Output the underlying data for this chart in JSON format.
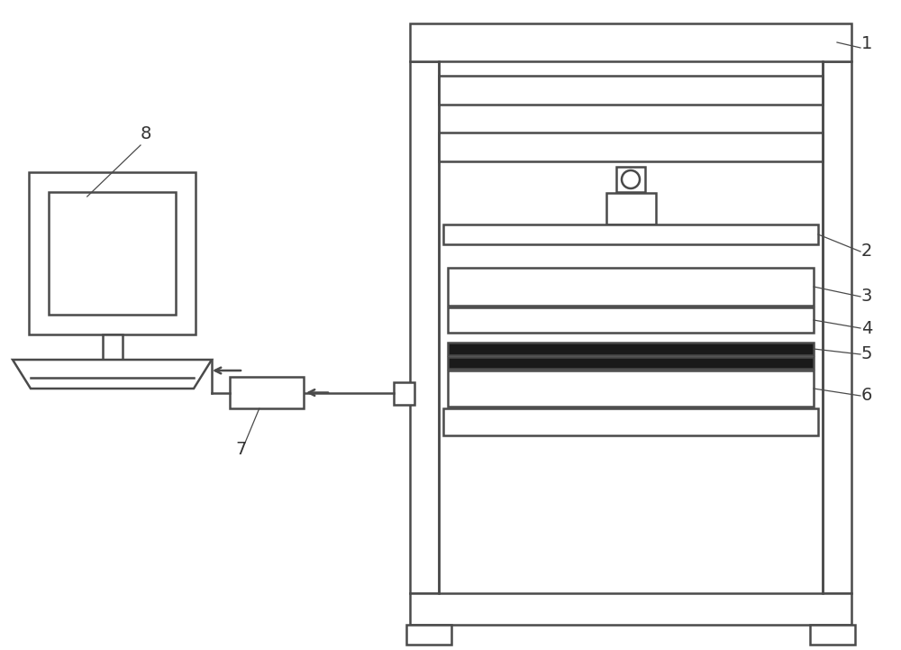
{
  "background_color": "#ffffff",
  "line_color": "#4a4a4a",
  "line_width": 1.8,
  "fig_width": 10.0,
  "fig_height": 7.21,
  "label_fontsize": 14,
  "label_color": "#333333"
}
